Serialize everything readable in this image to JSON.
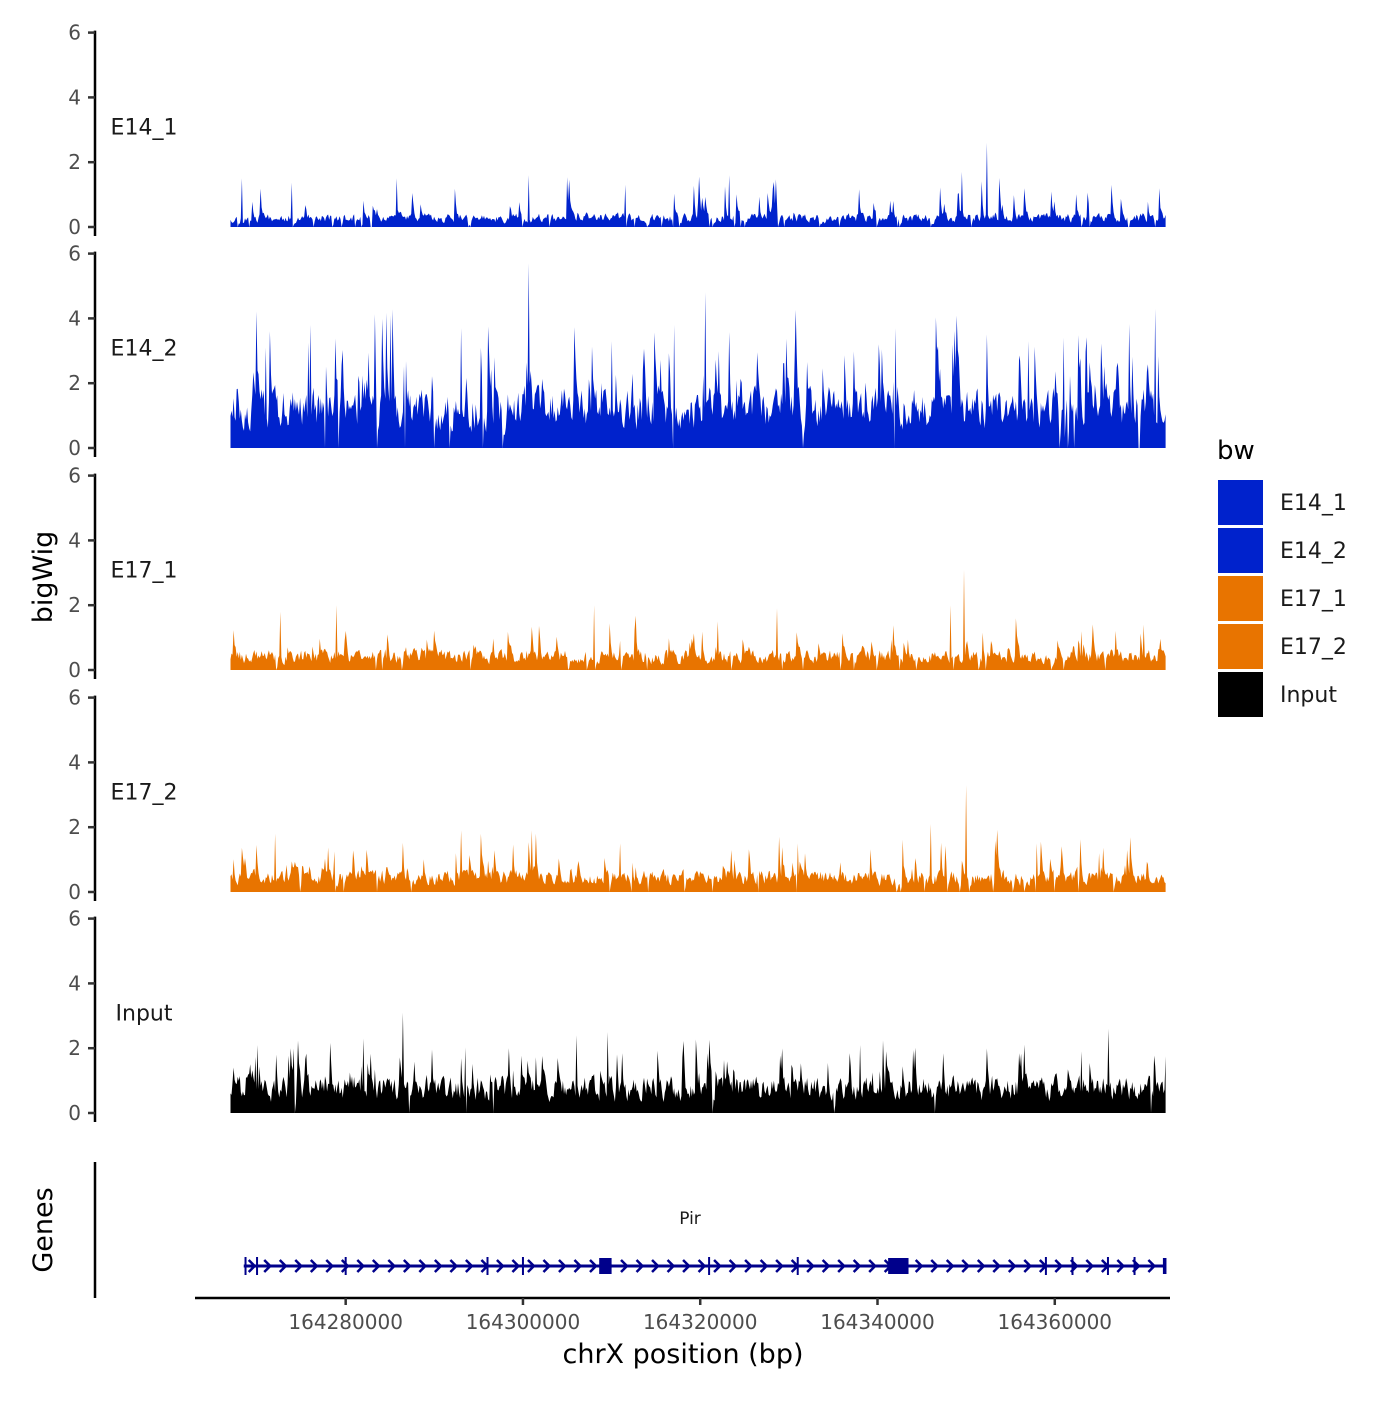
{
  "chart_data": {
    "type": "area",
    "ylabel": "bigWig",
    "xlabel": "chrX position (bp)",
    "genes_label": "Genes",
    "chrom": "chrX",
    "xlim": [
      164263000,
      164373000
    ],
    "region": [
      164267000,
      164372500
    ],
    "track_ylim": [
      0,
      6
    ],
    "y_ticks": [
      0,
      2,
      4,
      6
    ],
    "x_ticks": [
      164280000,
      164300000,
      164320000,
      164340000,
      164360000
    ],
    "x_tick_labels": [
      "164280000",
      "164300000",
      "164320000",
      "164340000",
      "164360000"
    ],
    "legend": {
      "title": "bw",
      "entries": [
        {
          "label": "E14_1",
          "color": "#0022CC"
        },
        {
          "label": "E14_2",
          "color": "#0022CC"
        },
        {
          "label": "E17_1",
          "color": "#E87400"
        },
        {
          "label": "E17_2",
          "color": "#E87400"
        },
        {
          "label": "Input",
          "color": "#000000"
        }
      ]
    },
    "tracks": [
      {
        "name": "E14_1",
        "color": "#0022CC",
        "seed": 11,
        "base": 0.28,
        "spike_prob": 0.07,
        "spike_max": 1.2,
        "gap_prob": 0.04,
        "peaks": [
          {
            "x": 164268300,
            "y": 1.5
          },
          {
            "x": 164285800,
            "y": 1.5
          },
          {
            "x": 164300600,
            "y": 1.6
          },
          {
            "x": 164323300,
            "y": 1.6
          },
          {
            "x": 164349500,
            "y": 1.7
          },
          {
            "x": 164352300,
            "y": 2.6
          }
        ]
      },
      {
        "name": "E14_2",
        "color": "#0022CC",
        "seed": 23,
        "base": 1.25,
        "spike_prob": 0.12,
        "spike_max": 2.4,
        "gap_prob": 0.015,
        "peaks": [
          {
            "x": 164271000,
            "y": 3.1
          },
          {
            "x": 164276000,
            "y": 3.8
          },
          {
            "x": 164285000,
            "y": 4.1
          },
          {
            "x": 164293000,
            "y": 3.7
          },
          {
            "x": 164300600,
            "y": 5.7
          },
          {
            "x": 164310000,
            "y": 3.3
          },
          {
            "x": 164317000,
            "y": 3.8
          },
          {
            "x": 164320600,
            "y": 4.8
          },
          {
            "x": 164342000,
            "y": 3.7
          },
          {
            "x": 164357000,
            "y": 3.3
          },
          {
            "x": 164361000,
            "y": 3.4
          },
          {
            "x": 164371300,
            "y": 4.3
          }
        ]
      },
      {
        "name": "E17_1",
        "color": "#E87400",
        "seed": 37,
        "base": 0.42,
        "spike_prob": 0.08,
        "spike_max": 1.0,
        "gap_prob": 0.03,
        "peaks": [
          {
            "x": 164272600,
            "y": 1.8
          },
          {
            "x": 164279000,
            "y": 2.0
          },
          {
            "x": 164308000,
            "y": 2.0
          },
          {
            "x": 164322000,
            "y": 1.5
          },
          {
            "x": 164328700,
            "y": 1.9
          },
          {
            "x": 164348200,
            "y": 2.0
          },
          {
            "x": 164349800,
            "y": 3.1
          },
          {
            "x": 164363000,
            "y": 1.2
          },
          {
            "x": 164370000,
            "y": 1.4
          }
        ]
      },
      {
        "name": "E17_2",
        "color": "#E87400",
        "seed": 53,
        "base": 0.45,
        "spike_prob": 0.1,
        "spike_max": 1.2,
        "gap_prob": 0.03,
        "peaks": [
          {
            "x": 164272000,
            "y": 1.8
          },
          {
            "x": 164293000,
            "y": 1.9
          },
          {
            "x": 164301000,
            "y": 1.9
          },
          {
            "x": 164311000,
            "y": 1.5
          },
          {
            "x": 164331000,
            "y": 1.5
          },
          {
            "x": 164346000,
            "y": 2.1
          },
          {
            "x": 164350000,
            "y": 3.3
          },
          {
            "x": 164358000,
            "y": 1.5
          },
          {
            "x": 164365000,
            "y": 1.2
          }
        ]
      },
      {
        "name": "Input",
        "color": "#000000",
        "seed": 71,
        "base": 0.75,
        "spike_prob": 0.12,
        "spike_max": 1.3,
        "gap_prob": 0.01,
        "peaks": [
          {
            "x": 164270000,
            "y": 2.1
          },
          {
            "x": 164282000,
            "y": 2.3
          },
          {
            "x": 164286500,
            "y": 3.1
          },
          {
            "x": 164306000,
            "y": 2.4
          },
          {
            "x": 164309500,
            "y": 2.5
          },
          {
            "x": 164338000,
            "y": 2.1
          },
          {
            "x": 164363000,
            "y": 1.9
          },
          {
            "x": 164366000,
            "y": 2.6
          }
        ]
      }
    ],
    "gene": {
      "name": "Pir",
      "strand": "+",
      "start": 164268500,
      "end": 164372500,
      "color": "#00008B",
      "exons": [
        {
          "start": 164308600,
          "end": 164310000
        },
        {
          "start": 164341200,
          "end": 164343500
        },
        {
          "start": 164372200,
          "end": 164372600
        }
      ],
      "ticks": [
        164268700,
        164270000,
        164280000,
        164296000,
        164300000,
        164321000,
        164331000,
        164359000,
        164362000,
        164366000,
        164369000
      ]
    }
  }
}
